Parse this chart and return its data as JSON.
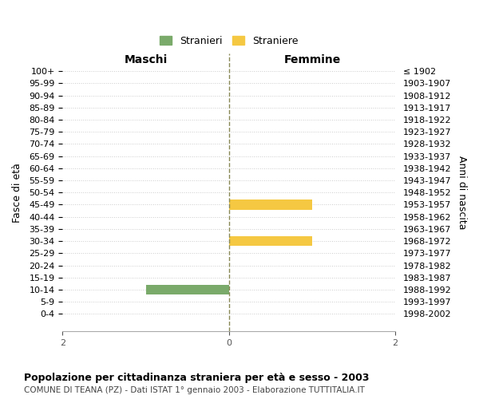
{
  "age_groups": [
    "0-4",
    "5-9",
    "10-14",
    "15-19",
    "20-24",
    "25-29",
    "30-34",
    "35-39",
    "40-44",
    "45-49",
    "50-54",
    "55-59",
    "60-64",
    "65-69",
    "70-74",
    "75-79",
    "80-84",
    "85-89",
    "90-94",
    "95-99",
    "100+"
  ],
  "birth_years": [
    "1998-2002",
    "1993-1997",
    "1988-1992",
    "1983-1987",
    "1978-1982",
    "1973-1977",
    "1968-1972",
    "1963-1967",
    "1958-1962",
    "1953-1957",
    "1948-1952",
    "1943-1947",
    "1938-1942",
    "1933-1937",
    "1928-1932",
    "1923-1927",
    "1918-1922",
    "1913-1917",
    "1908-1912",
    "1903-1907",
    "≤ 1902"
  ],
  "males": [
    0,
    0,
    1,
    0,
    0,
    0,
    0,
    0,
    0,
    0,
    0,
    0,
    0,
    0,
    0,
    0,
    0,
    0,
    0,
    0,
    0
  ],
  "females": [
    0,
    0,
    0,
    0,
    0,
    0,
    1,
    0,
    0,
    1,
    0,
    0,
    0,
    0,
    0,
    0,
    0,
    0,
    0,
    0,
    0
  ],
  "male_color": "#7aaa6a",
  "female_color": "#f5c842",
  "xlim": 2,
  "title_maschi": "Maschi",
  "title_femmine": "Femmine",
  "ylabel_left": "Fasce di età",
  "ylabel_right": "Anni di nascita",
  "legend_male": "Stranieri",
  "legend_female": "Straniere",
  "chart_title": "Popolazione per cittadinanza straniera per età e sesso - 2003",
  "chart_subtitle": "COMUNE DI TEANA (PZ) - Dati ISTAT 1° gennaio 2003 - Elaborazione TUTTITALIA.IT",
  "background_color": "#ffffff",
  "grid_color": "#cccccc",
  "dashed_line_color": "#888855",
  "bar_height": 0.8
}
